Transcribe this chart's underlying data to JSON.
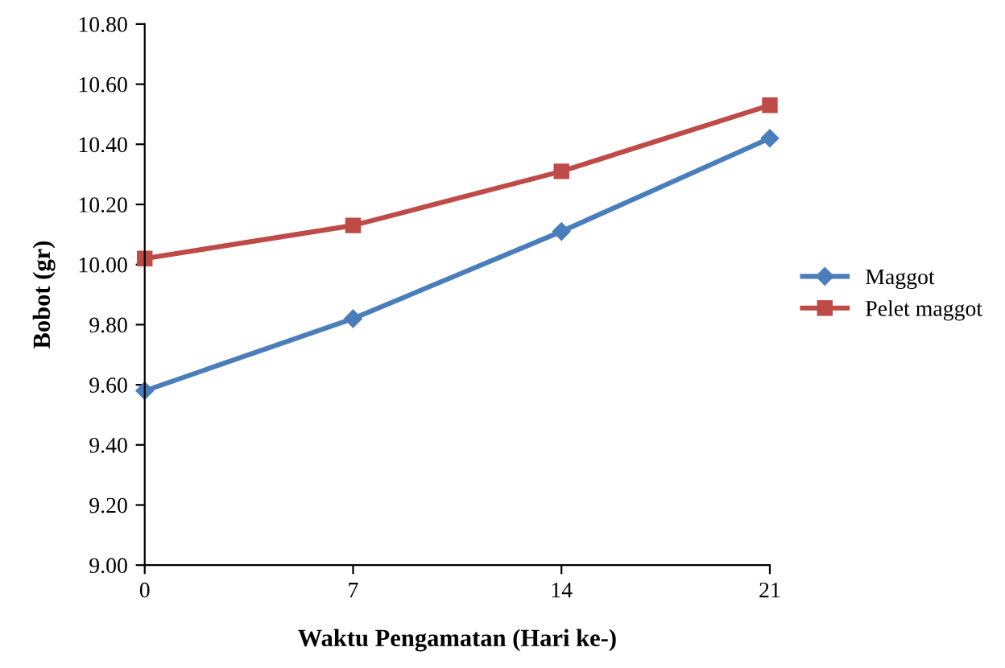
{
  "chart_data": {
    "type": "line",
    "xlabel": "Waktu Pengamatan (Hari ke-)",
    "ylabel": "Bobot (gr)",
    "x": [
      0,
      7,
      14,
      21
    ],
    "series": [
      {
        "name": "Maggot",
        "color": "#4a7ebb",
        "values": [
          9.58,
          9.82,
          10.11,
          10.42
        ],
        "marker": "diamond"
      },
      {
        "name": "Pelet maggot",
        "color": "#be4b48",
        "values": [
          10.02,
          10.13,
          10.31,
          10.53
        ],
        "marker": "square"
      }
    ],
    "xlim": [
      0,
      21
    ],
    "xticks": [
      0,
      7,
      14,
      21
    ],
    "ylim": [
      9.0,
      10.8
    ],
    "yticks": [
      {
        "value": 9.0,
        "label": "9.00"
      },
      {
        "value": 9.2,
        "label": "9.20"
      },
      {
        "value": 9.4,
        "label": "9.40"
      },
      {
        "value": 9.6,
        "label": "9.60"
      },
      {
        "value": 9.8,
        "label": "9.80"
      },
      {
        "value": 10.0,
        "label": "10.00"
      },
      {
        "value": 10.2,
        "label": "10.20"
      },
      {
        "value": 10.4,
        "label": "10.40"
      },
      {
        "value": 10.6,
        "label": "10.60"
      },
      {
        "value": 10.8,
        "label": "10.80"
      }
    ],
    "grid": false,
    "legend": "right",
    "line_style": "solid"
  }
}
